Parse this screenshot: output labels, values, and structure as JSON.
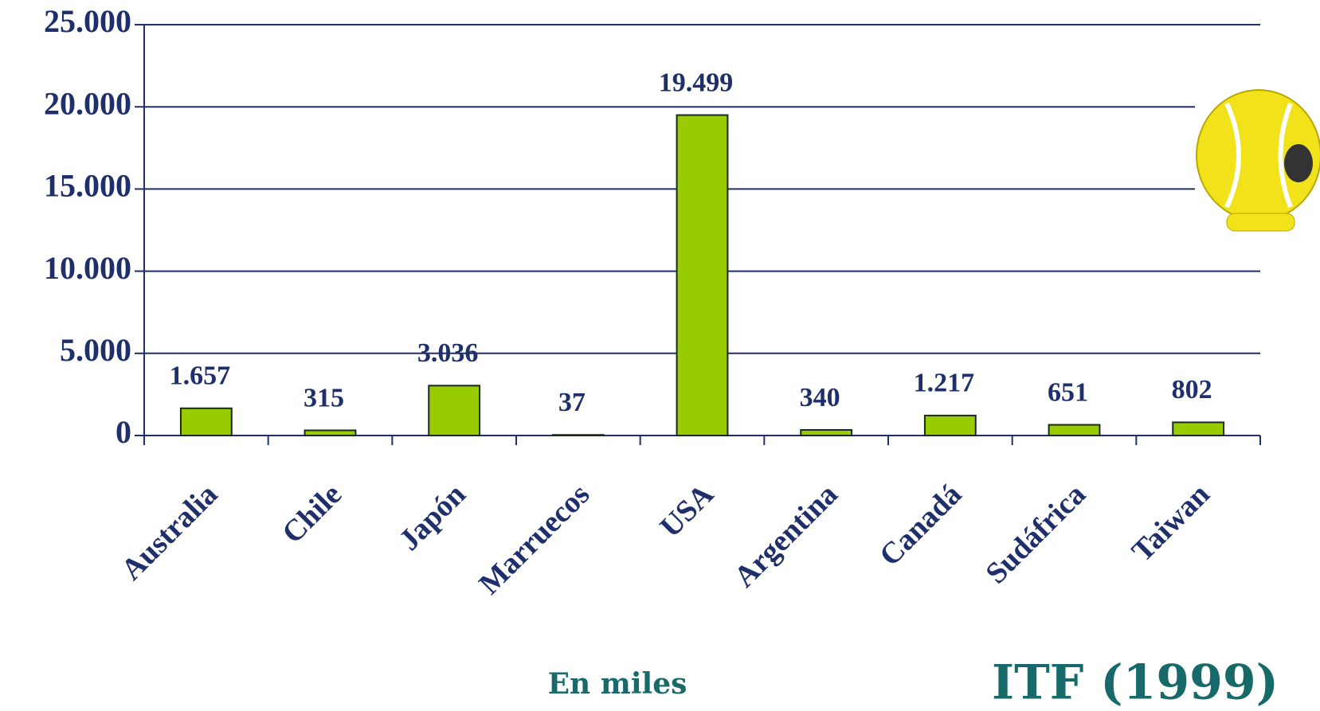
{
  "chart_data": {
    "type": "bar",
    "categories": [
      "Australia",
      "Chile",
      "Japón",
      "Marruecos",
      "USA",
      "Argentina",
      "Canadá",
      "Sudáfrica",
      "Taiwan"
    ],
    "values": [
      1657,
      315,
      3036,
      37,
      19499,
      340,
      1217,
      651,
      802
    ],
    "value_labels": [
      "1.657",
      "315",
      "3.036",
      "37",
      "19.499",
      "340",
      "1.217",
      "651",
      "802"
    ],
    "color": "#99cc00",
    "ylim": [
      0,
      25000
    ],
    "yticks": [
      0,
      {
        "value": 5000,
        "label": "5.000"
      },
      {
        "value": 10000,
        "label": "10.000"
      },
      {
        "value": 15000,
        "label": "15.000"
      },
      {
        "value": 20000,
        "label": "20.000"
      },
      {
        "value": 25000,
        "label": "25.000"
      }
    ],
    "grid": true,
    "annotations": [
      "En miles",
      "ITF (1999)"
    ]
  }
}
